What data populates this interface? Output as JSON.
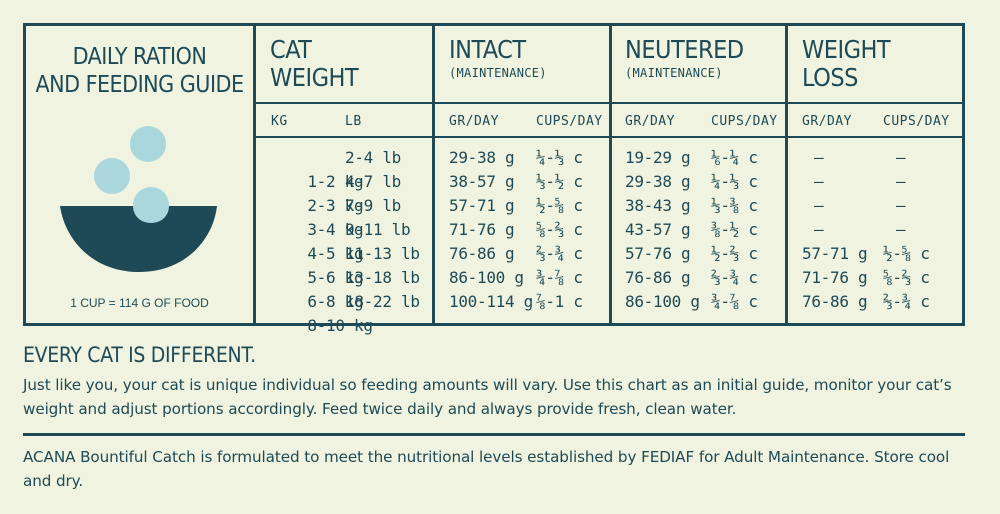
{
  "guide": {
    "title_line1": "DAILY RATION",
    "title_line2": "AND FEEDING GUIDE",
    "cup_note": "1 CUP = 114 G OF FOOD",
    "icon": "food-bowl-icon"
  },
  "columns": {
    "cat_weight": {
      "line1": "CAT",
      "line2": "WEIGHT",
      "sub1": "KG",
      "sub2": "LB"
    },
    "intact": {
      "line1": "INTACT",
      "note": "(MAINTENANCE)",
      "sub1": "GR/DAY",
      "sub2": "CUPS/DAY"
    },
    "neutered": {
      "line1": "NEUTERED",
      "note": "(MAINTENANCE)",
      "sub1": "GR/DAY",
      "sub2": "CUPS/DAY"
    },
    "weight_loss": {
      "line1": "WEIGHT",
      "line2": "LOSS",
      "sub1": "GR/DAY",
      "sub2": "CUPS/DAY"
    }
  },
  "rows": [
    {
      "kg": "1-2 kg",
      "lb": "2-4 lb",
      "intact_g": "29-38 g",
      "intact_c": "¼-⅓ c",
      "neut_g": "19-29 g",
      "neut_c": "⅙-¼ c",
      "loss_g": "—",
      "loss_c": "—"
    },
    {
      "kg": "2-3 kg",
      "lb": "4-7 lb",
      "intact_g": "38-57 g",
      "intact_c": "⅓-½ c",
      "neut_g": "29-38 g",
      "neut_c": "¼-⅓ c",
      "loss_g": "—",
      "loss_c": "—"
    },
    {
      "kg": "3-4 kg",
      "lb": "7-9 lb",
      "intact_g": "57-71 g",
      "intact_c": "½-⅝ c",
      "neut_g": "38-43 g",
      "neut_c": "⅓-⅜ c",
      "loss_g": "—",
      "loss_c": "—"
    },
    {
      "kg": "4-5 kg",
      "lb": "9-11 lb",
      "intact_g": "71-76 g",
      "intact_c": "⅝-⅔ c",
      "neut_g": "43-57 g",
      "neut_c": "⅜-½ c",
      "loss_g": "—",
      "loss_c": "—"
    },
    {
      "kg": "5-6 kg",
      "lb": "11-13 lb",
      "intact_g": "76-86 g",
      "intact_c": "⅔-¾ c",
      "neut_g": "57-76 g",
      "neut_c": "½-⅔ c",
      "loss_g": "57-71 g",
      "loss_c": "½-⅝ c"
    },
    {
      "kg": "6-8 kg",
      "lb": "13-18 lb",
      "intact_g": "86-100 g",
      "intact_c": "¾-⅞ c",
      "neut_g": "76-86 g",
      "neut_c": "⅔-¾ c",
      "loss_g": "71-76 g",
      "loss_c": "⅝-⅔ c"
    },
    {
      "kg": "8-10 kg",
      "lb": "18-22 lb",
      "intact_g": "100-114 g",
      "intact_c": "⅞-1 c",
      "neut_g": "86-100 g",
      "neut_c": "¾-⅞ c",
      "loss_g": "76-86 g",
      "loss_c": "⅔-¾ c"
    }
  ],
  "notes": {
    "heading": "EVERY CAT IS DIFFERENT.",
    "para1": "Just like you, your cat is unique individual so feeding amounts will vary. Use this chart as an initial guide, monitor your cat’s weight and adjust portions accordingly. Feed twice daily and always provide fresh, clean water.",
    "para2": "ACANA Bountiful Catch is formulated to meet the nutritional levels established by FEDIAF for Adult Maintenance. Store cool and dry."
  },
  "colors": {
    "ink": "#1e4a57",
    "background": "#eff3df",
    "kibble": "#a9d7dc"
  }
}
